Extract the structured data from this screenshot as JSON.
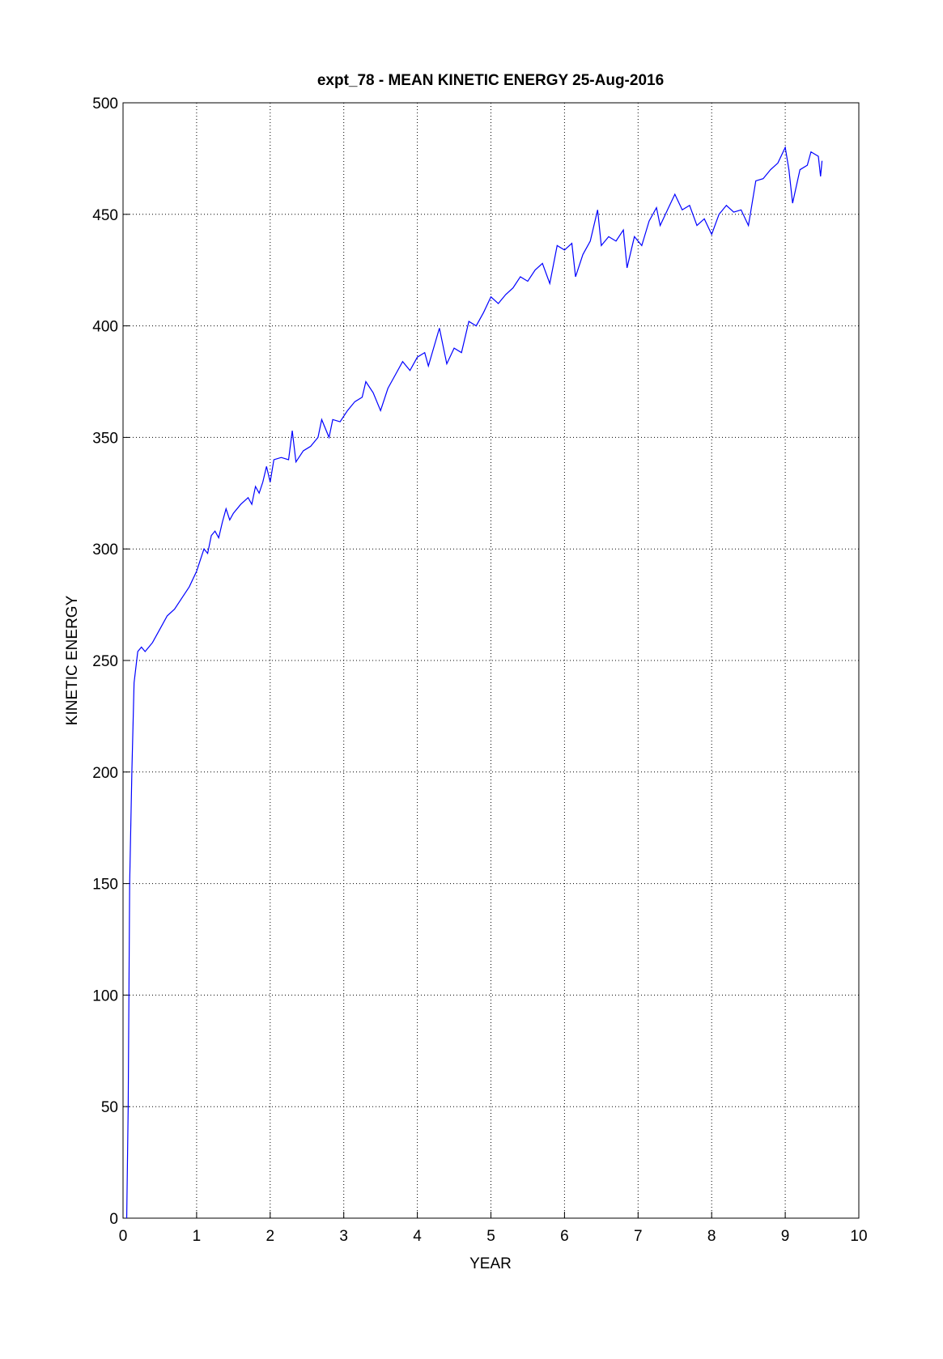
{
  "chart_data": {
    "type": "line",
    "title": "expt_78 - MEAN KINETIC ENERGY 25-Aug-2016",
    "x_label": "YEAR",
    "y_label": "KINETIC ENERGY",
    "x": [
      0.05,
      0.07,
      0.09,
      0.12,
      0.15,
      0.2,
      0.25,
      0.3,
      0.35,
      0.4,
      0.5,
      0.6,
      0.7,
      0.8,
      0.9,
      1.0,
      1.05,
      1.1,
      1.15,
      1.2,
      1.25,
      1.3,
      1.35,
      1.4,
      1.45,
      1.5,
      1.6,
      1.7,
      1.75,
      1.8,
      1.85,
      1.9,
      1.95,
      2.0,
      2.05,
      2.15,
      2.25,
      2.3,
      2.35,
      2.45,
      2.55,
      2.65,
      2.7,
      2.8,
      2.85,
      2.95,
      3.05,
      3.15,
      3.25,
      3.3,
      3.4,
      3.5,
      3.6,
      3.7,
      3.8,
      3.9,
      4.0,
      4.1,
      4.15,
      4.3,
      4.4,
      4.5,
      4.6,
      4.7,
      4.8,
      4.9,
      5.0,
      5.1,
      5.2,
      5.3,
      5.4,
      5.5,
      5.6,
      5.7,
      5.8,
      5.9,
      6.0,
      6.1,
      6.15,
      6.25,
      6.35,
      6.45,
      6.5,
      6.6,
      6.7,
      6.8,
      6.85,
      6.95,
      7.05,
      7.15,
      7.25,
      7.3,
      7.4,
      7.5,
      7.6,
      7.7,
      7.8,
      7.9,
      8.0,
      8.1,
      8.2,
      8.3,
      8.4,
      8.5,
      8.6,
      8.7,
      8.8,
      8.9,
      9.0,
      9.05,
      9.1,
      9.2,
      9.3,
      9.35,
      9.45,
      9.48,
      9.5
    ],
    "series": [
      {
        "name": "KINETIC ENERGY",
        "color": "#0000ff",
        "values": [
          0,
          50,
          150,
          200,
          240,
          254,
          256,
          254,
          256,
          258,
          264,
          270,
          273,
          278,
          283,
          290,
          295,
          300,
          298,
          306,
          308,
          305,
          312,
          318,
          313,
          316,
          320,
          323,
          320,
          328,
          325,
          330,
          337,
          330,
          340,
          341,
          340,
          353,
          339,
          344,
          346,
          350,
          358,
          350,
          358,
          357,
          362,
          366,
          368,
          375,
          370,
          362,
          372,
          378,
          384,
          380,
          386,
          388,
          382,
          399,
          383,
          390,
          388,
          402,
          400,
          406,
          413,
          410,
          414,
          417,
          422,
          420,
          425,
          428,
          419,
          436,
          434,
          437,
          422,
          432,
          438,
          452,
          436,
          440,
          438,
          443,
          426,
          440,
          436,
          447,
          453,
          445,
          452,
          459,
          452,
          454,
          445,
          448,
          441,
          450,
          454,
          451,
          452,
          445,
          465,
          466,
          470,
          473,
          480,
          470,
          455,
          470,
          472,
          478,
          476,
          467,
          474
        ]
      }
    ],
    "xlim": [
      0,
      10
    ],
    "xticks": [
      0,
      1,
      2,
      3,
      4,
      5,
      6,
      7,
      8,
      9,
      10
    ],
    "ylim": [
      0,
      500
    ],
    "yticks": [
      0,
      50,
      100,
      150,
      200,
      250,
      300,
      350,
      400,
      450,
      500
    ],
    "grid": true
  }
}
